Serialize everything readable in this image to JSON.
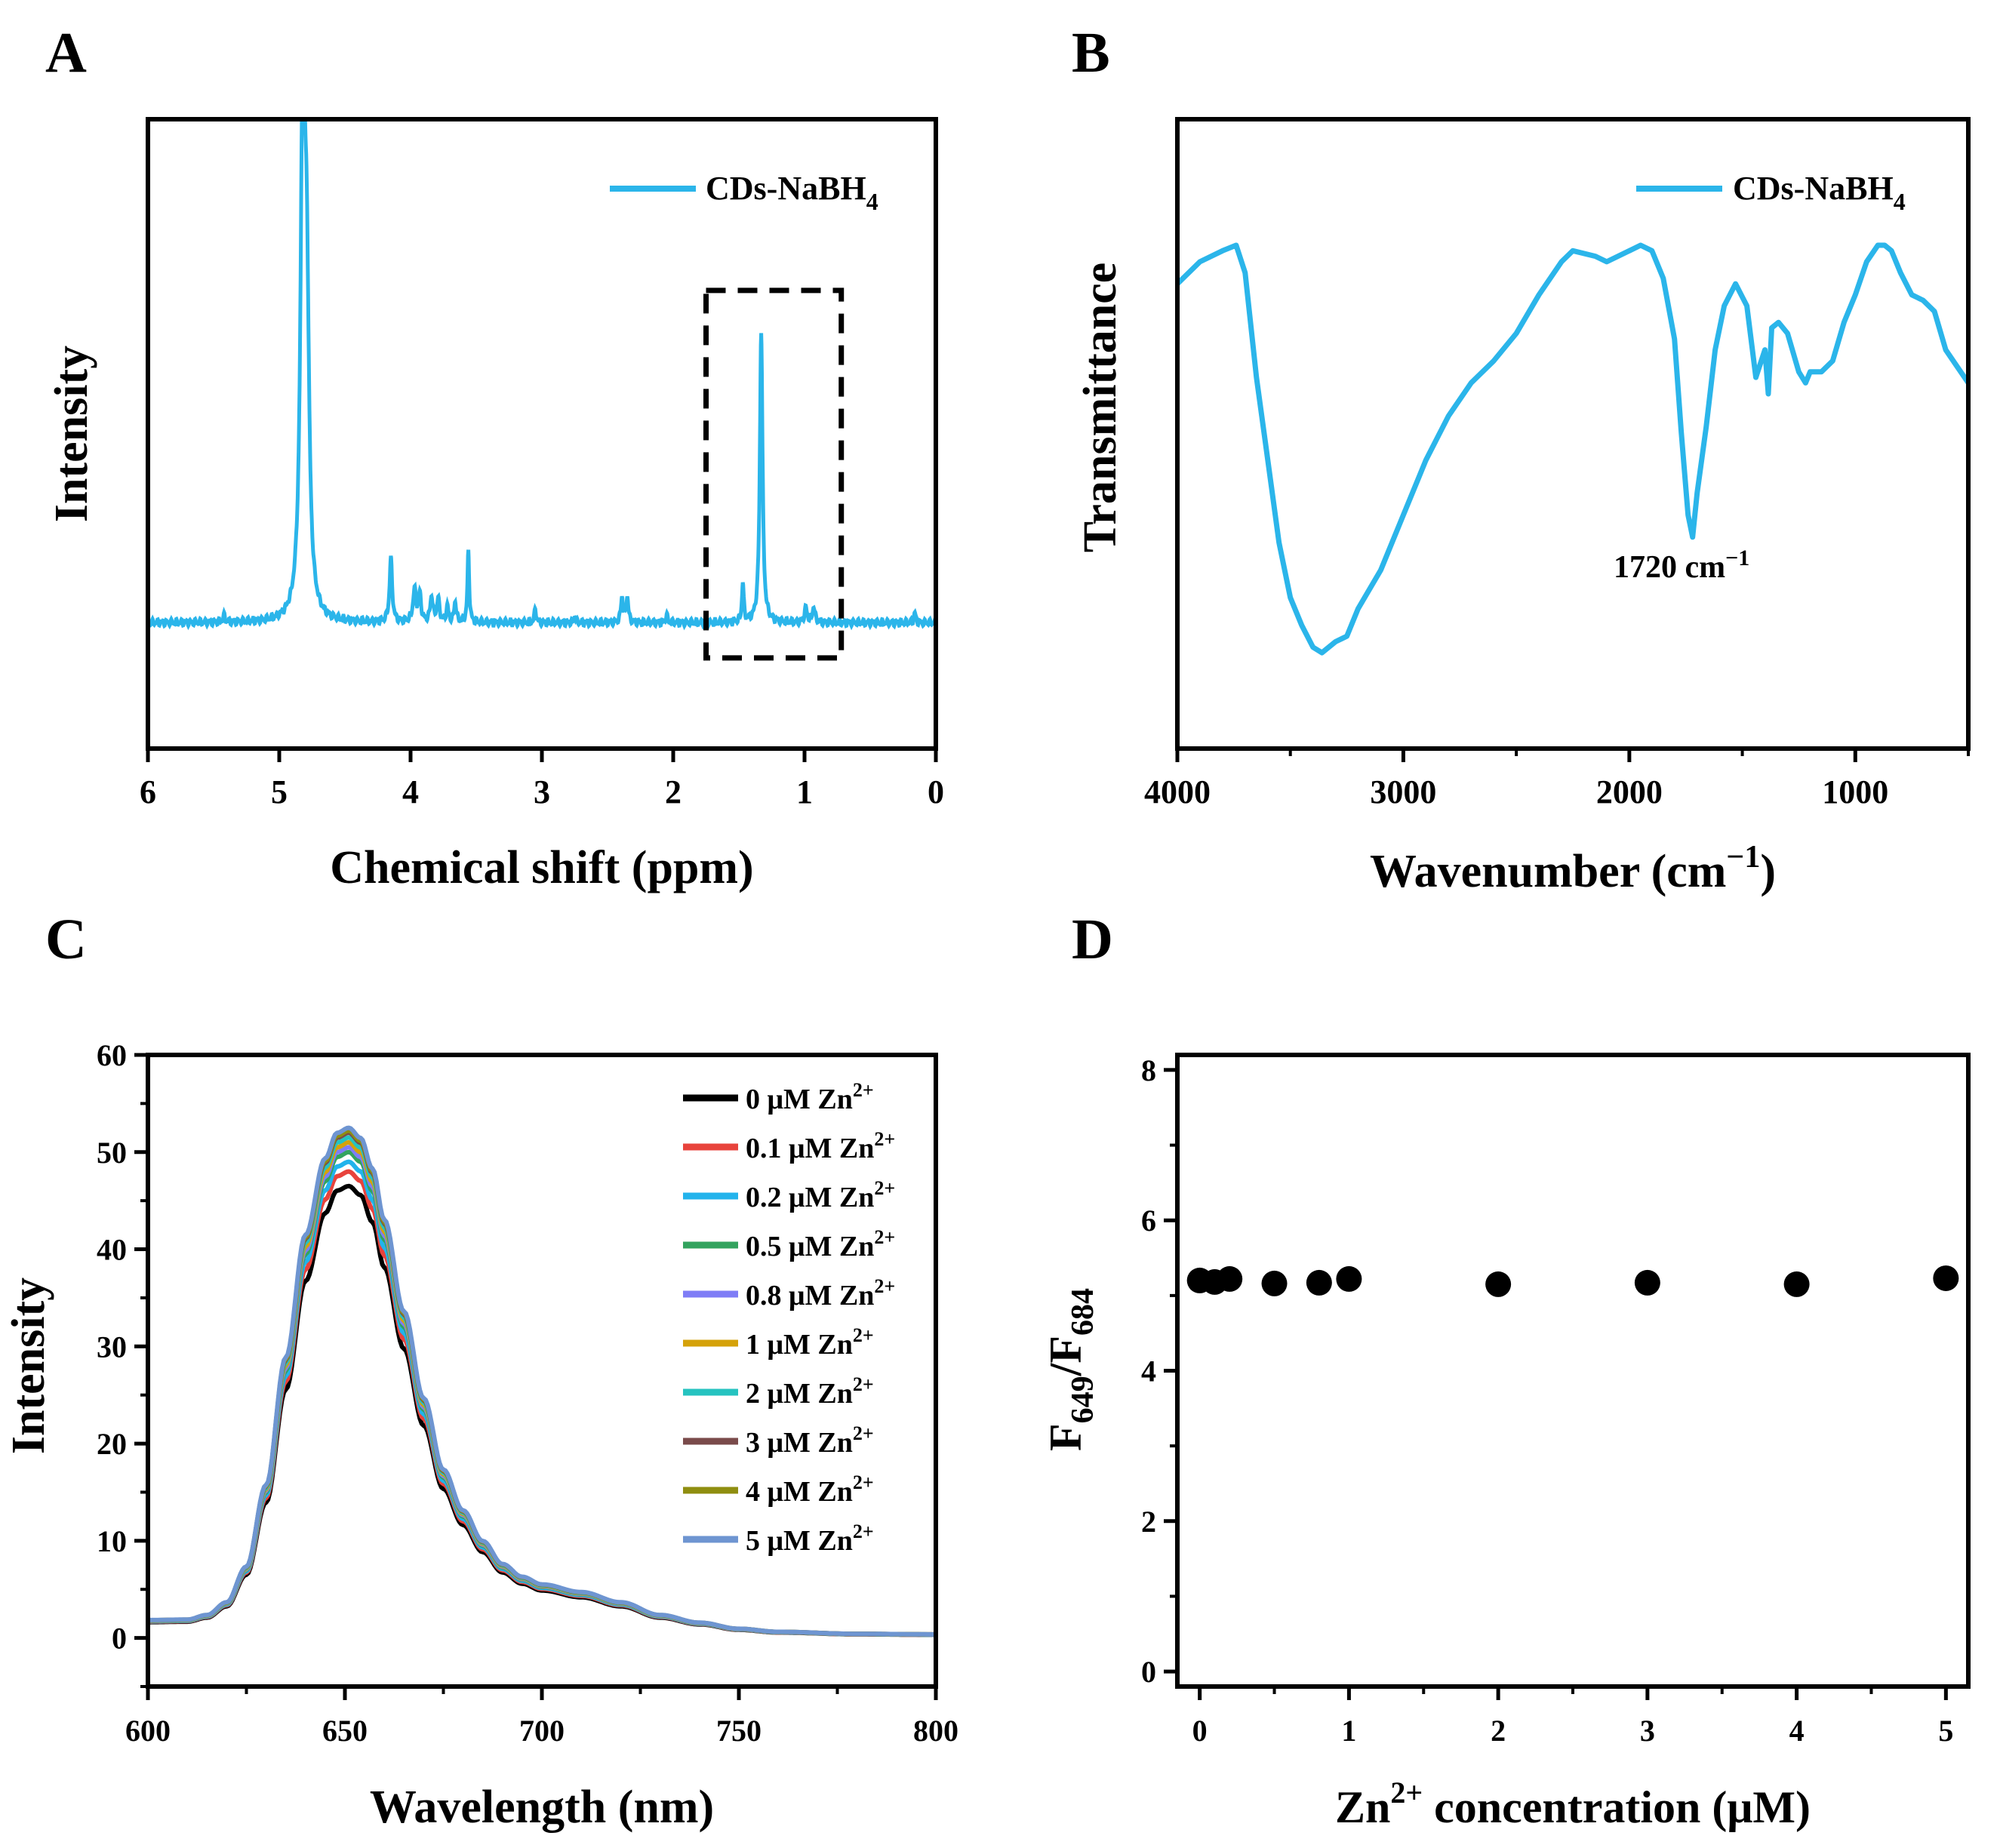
{
  "colors": {
    "cyan": "#2bb5ea",
    "axis": "#000000",
    "black": "#000000",
    "red": "#e8433c",
    "blue": "#22b3ec",
    "green": "#33a35e",
    "violet": "#7f7df6",
    "gold": "#d5a20a",
    "teal": "#26c3c0",
    "brown": "#7a4b4b",
    "olive": "#8f8e10",
    "steel": "#6e95d1"
  },
  "chart_data": [
    {
      "panel": "A",
      "type": "line",
      "xlabel": "Chemical shift (ppm)",
      "ylabel": "Intensity",
      "xlim": [
        6,
        0
      ],
      "ylim": [
        -0.25,
        1.0
      ],
      "xticks": [
        6,
        5,
        4,
        3,
        2,
        1,
        0
      ],
      "legend": {
        "position": "top-right",
        "entries": [
          {
            "base": "CDs-NaBH",
            "sub": "4"
          }
        ]
      },
      "annotation": {
        "type": "dashed-box",
        "x_range": [
          1.75,
          0.72
        ],
        "y_range": [
          -0.07,
          0.66
        ]
      },
      "series": [
        {
          "name": "CDs-NaBH4",
          "color_key": "cyan",
          "baseline": 0.0,
          "peaks": [
            {
              "x": 5.42,
              "h": 0.012,
              "w": 0.01
            },
            {
              "x": 4.82,
              "h": 1.05,
              "w": 0.02
            },
            {
              "x": 4.79,
              "h": 0.55,
              "w": 0.02
            },
            {
              "x": 4.15,
              "h": 0.125,
              "w": 0.012
            },
            {
              "x": 3.97,
              "h": 0.062,
              "w": 0.014
            },
            {
              "x": 3.93,
              "h": 0.052,
              "w": 0.012
            },
            {
              "x": 3.84,
              "h": 0.05,
              "w": 0.012
            },
            {
              "x": 3.79,
              "h": 0.045,
              "w": 0.012
            },
            {
              "x": 3.72,
              "h": 0.03,
              "w": 0.01
            },
            {
              "x": 3.66,
              "h": 0.04,
              "w": 0.01
            },
            {
              "x": 3.56,
              "h": 0.14,
              "w": 0.008
            },
            {
              "x": 3.05,
              "h": 0.028,
              "w": 0.008
            },
            {
              "x": 2.75,
              "h": 0.012,
              "w": 0.008
            },
            {
              "x": 2.39,
              "h": 0.05,
              "w": 0.01
            },
            {
              "x": 2.35,
              "h": 0.05,
              "w": 0.01
            },
            {
              "x": 2.05,
              "h": 0.015,
              "w": 0.008
            },
            {
              "x": 1.47,
              "h": 0.078,
              "w": 0.008
            },
            {
              "x": 1.33,
              "h": 0.58,
              "w": 0.012
            },
            {
              "x": 0.99,
              "h": 0.028,
              "w": 0.012
            },
            {
              "x": 0.93,
              "h": 0.03,
              "w": 0.012
            },
            {
              "x": 0.16,
              "h": 0.02,
              "w": 0.008
            }
          ]
        }
      ]
    },
    {
      "panel": "B",
      "type": "line",
      "xlabel": {
        "base": "Wavenumber (cm",
        "sup": "−1",
        "close": ")"
      },
      "ylabel": "Transmittance",
      "xlim": [
        4000,
        500
      ],
      "ylim": [
        0,
        1
      ],
      "xticks": [
        4000,
        3000,
        2000,
        1000
      ],
      "legend": {
        "position": "top-right",
        "entries": [
          {
            "base": "CDs-NaBH",
            "sub": "4"
          }
        ]
      },
      "annotations": [
        {
          "text": "1720 cm",
          "sup": "−1",
          "x": 1720
        }
      ],
      "series": [
        {
          "name": "CDs-NaBH4",
          "color_key": "cyan",
          "x": [
            4000,
            3900,
            3800,
            3740,
            3700,
            3650,
            3600,
            3550,
            3500,
            3450,
            3400,
            3360,
            3300,
            3250,
            3200,
            3100,
            3000,
            2900,
            2800,
            2700,
            2600,
            2500,
            2400,
            2300,
            2250,
            2150,
            2100,
            2000,
            1950,
            1900,
            1850,
            1800,
            1770,
            1740,
            1720,
            1700,
            1660,
            1620,
            1580,
            1530,
            1480,
            1440,
            1400,
            1385,
            1370,
            1340,
            1300,
            1250,
            1220,
            1200,
            1150,
            1100,
            1050,
            1000,
            950,
            900,
            870,
            840,
            800,
            750,
            700,
            650,
            600,
            550,
            500
          ],
          "y": [
            0.62,
            0.66,
            0.68,
            0.69,
            0.64,
            0.45,
            0.3,
            0.15,
            0.05,
            0.0,
            -0.04,
            -0.05,
            -0.03,
            -0.02,
            0.03,
            0.1,
            0.2,
            0.3,
            0.38,
            0.44,
            0.48,
            0.53,
            0.6,
            0.66,
            0.68,
            0.67,
            0.66,
            0.68,
            0.69,
            0.68,
            0.63,
            0.52,
            0.35,
            0.2,
            0.16,
            0.24,
            0.36,
            0.5,
            0.58,
            0.62,
            0.58,
            0.45,
            0.5,
            0.42,
            0.54,
            0.55,
            0.53,
            0.46,
            0.44,
            0.46,
            0.46,
            0.48,
            0.55,
            0.6,
            0.66,
            0.69,
            0.69,
            0.68,
            0.64,
            0.6,
            0.59,
            0.57,
            0.5,
            0.47,
            0.44
          ]
        }
      ]
    },
    {
      "panel": "C",
      "type": "line",
      "xlabel": "Wavelength (nm)",
      "ylabel": "Intensity",
      "xlim": [
        600,
        800
      ],
      "ylim": [
        -5,
        60
      ],
      "xticks": [
        600,
        650,
        700,
        750,
        800
      ],
      "yticks": [
        0,
        10,
        20,
        30,
        40,
        50,
        60
      ],
      "legend": {
        "position": "top-right"
      },
      "profile": {
        "x": [
          600,
          610,
          615,
          620,
          625,
          630,
          635,
          640,
          645,
          648,
          651,
          654,
          657,
          660,
          665,
          670,
          675,
          680,
          685,
          690,
          695,
          700,
          710,
          720,
          730,
          740,
          750,
          760,
          780,
          800
        ],
        "y": [
          0.035,
          0.036,
          0.045,
          0.07,
          0.14,
          0.3,
          0.55,
          0.79,
          0.94,
          0.99,
          1.0,
          0.98,
          0.92,
          0.82,
          0.64,
          0.47,
          0.33,
          0.25,
          0.19,
          0.145,
          0.12,
          0.105,
          0.09,
          0.07,
          0.045,
          0.03,
          0.018,
          0.012,
          0.008,
          0.007
        ]
      },
      "series": [
        {
          "name": "0 μM Zn",
          "sup": "2+",
          "peak": 46.5,
          "color_key": "black"
        },
        {
          "name": "0.1 μM Zn",
          "sup": "2+",
          "peak": 48.0,
          "color_key": "red"
        },
        {
          "name": "0.2 μM Zn",
          "sup": "2+",
          "peak": 49.0,
          "color_key": "blue"
        },
        {
          "name": "0.5 μM Zn",
          "sup": "2+",
          "peak": 50.0,
          "color_key": "green"
        },
        {
          "name": "0.8 μM Zn",
          "sup": "2+",
          "peak": 50.5,
          "color_key": "violet"
        },
        {
          "name": "1 μM Zn",
          "sup": "2+",
          "peak": 51.0,
          "color_key": "gold"
        },
        {
          "name": "2 μM Zn",
          "sup": "2+",
          "peak": 51.5,
          "color_key": "teal"
        },
        {
          "name": "3 μM Zn",
          "sup": "2+",
          "peak": 52.0,
          "color_key": "brown"
        },
        {
          "name": "4 μM Zn",
          "sup": "2+",
          "peak": 52.2,
          "color_key": "olive"
        },
        {
          "name": "5 μM Zn",
          "sup": "2+",
          "peak": 52.5,
          "color_key": "steel"
        }
      ]
    },
    {
      "panel": "D",
      "type": "scatter",
      "xlabel": {
        "pre": "Zn",
        "sup": "2+",
        "post": " concentration (μM)"
      },
      "ylabel": {
        "F": "F",
        "sub1": "649",
        "slash": "/F",
        "sub2": "684"
      },
      "xlim": [
        -0.15,
        5.15
      ],
      "ylim": [
        -0.2,
        8.2
      ],
      "xticks": [
        0,
        1,
        2,
        3,
        4,
        5
      ],
      "yticks": [
        0,
        2,
        4,
        6,
        8
      ],
      "series": [
        {
          "color_key": "black",
          "x": [
            0,
            0.1,
            0.2,
            0.5,
            0.8,
            1,
            2,
            3,
            4,
            5
          ],
          "y": [
            5.2,
            5.18,
            5.22,
            5.16,
            5.17,
            5.22,
            5.15,
            5.17,
            5.15,
            5.23
          ]
        }
      ]
    }
  ],
  "panel_labels": [
    "A",
    "B",
    "C",
    "D"
  ]
}
